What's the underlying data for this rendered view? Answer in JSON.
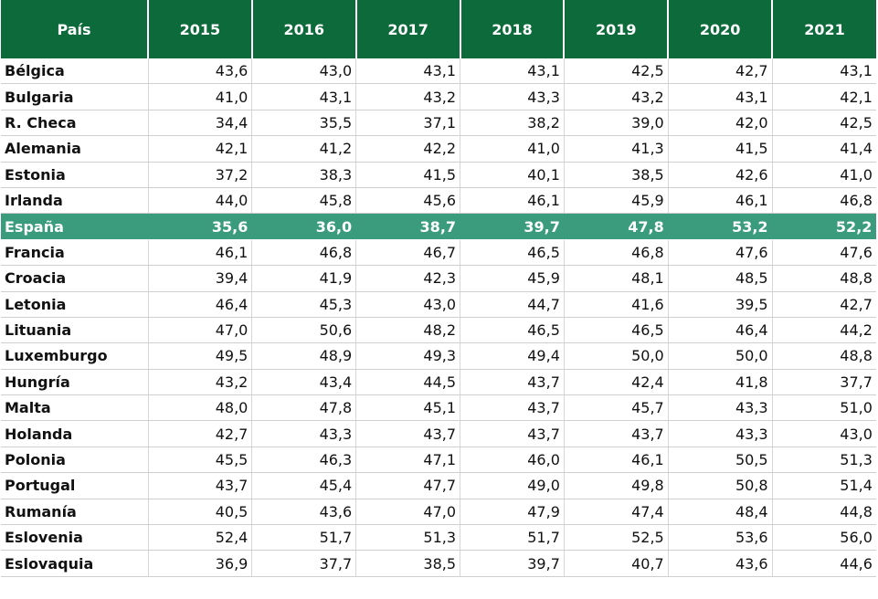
{
  "table": {
    "headers": [
      "País",
      "2015",
      "2016",
      "2017",
      "2018",
      "2019",
      "2020",
      "2021"
    ],
    "highlight_color": "#3a9b7d",
    "header_color": "#0c6a3b",
    "rows": [
      {
        "country": "Bélgica",
        "values": [
          "43,6",
          "43,0",
          "43,1",
          "43,1",
          "42,5",
          "42,7",
          "43,1"
        ]
      },
      {
        "country": "Bulgaria",
        "values": [
          "41,0",
          "43,1",
          "43,2",
          "43,3",
          "43,2",
          "43,1",
          "42,1"
        ]
      },
      {
        "country": "R. Checa",
        "values": [
          "34,4",
          "35,5",
          "37,1",
          "38,2",
          "39,0",
          "42,0",
          "42,5"
        ]
      },
      {
        "country": "Alemania",
        "values": [
          "42,1",
          "41,2",
          "42,2",
          "41,0",
          "41,3",
          "41,5",
          "41,4"
        ]
      },
      {
        "country": "Estonia",
        "values": [
          "37,2",
          "38,3",
          "41,5",
          "40,1",
          "38,5",
          "42,6",
          "41,0"
        ]
      },
      {
        "country": "Irlanda",
        "values": [
          "44,0",
          "45,8",
          "45,6",
          "46,1",
          "45,9",
          "46,1",
          "46,8"
        ]
      },
      {
        "country": "España",
        "highlight": true,
        "values": [
          "35,6",
          "36,0",
          "38,7",
          "39,7",
          "47,8",
          "53,2",
          "52,2"
        ]
      },
      {
        "country": "Francia",
        "values": [
          "46,1",
          "46,8",
          "46,7",
          "46,5",
          "46,8",
          "47,6",
          "47,6"
        ]
      },
      {
        "country": "Croacia",
        "values": [
          "39,4",
          "41,9",
          "42,3",
          "45,9",
          "48,1",
          "48,5",
          "48,8"
        ]
      },
      {
        "country": "Letonia",
        "values": [
          "46,4",
          "45,3",
          "43,0",
          "44,7",
          "41,6",
          "39,5",
          "42,7"
        ]
      },
      {
        "country": "Lituania",
        "values": [
          "47,0",
          "50,6",
          "48,2",
          "46,5",
          "46,5",
          "46,4",
          "44,2"
        ]
      },
      {
        "country": "Luxemburgo",
        "values": [
          "49,5",
          "48,9",
          "49,3",
          "49,4",
          "50,0",
          "50,0",
          "48,8"
        ]
      },
      {
        "country": "Hungría",
        "values": [
          "43,2",
          "43,4",
          "44,5",
          "43,7",
          "42,4",
          "41,8",
          "37,7"
        ]
      },
      {
        "country": "Malta",
        "values": [
          "48,0",
          "47,8",
          "45,1",
          "43,7",
          "45,7",
          "43,3",
          "51,0"
        ]
      },
      {
        "country": "Holanda",
        "values": [
          "42,7",
          "43,3",
          "43,7",
          "43,7",
          "43,7",
          "43,3",
          "43,0"
        ]
      },
      {
        "country": "Polonia",
        "values": [
          "45,5",
          "46,3",
          "47,1",
          "46,0",
          "46,1",
          "50,5",
          "51,3"
        ]
      },
      {
        "country": "Portugal",
        "values": [
          "43,7",
          "45,4",
          "47,7",
          "49,0",
          "49,8",
          "50,8",
          "51,4"
        ]
      },
      {
        "country": "Rumanía",
        "values": [
          "40,5",
          "43,6",
          "47,0",
          "47,9",
          "47,4",
          "48,4",
          "44,8"
        ]
      },
      {
        "country": "Eslovenia",
        "values": [
          "52,4",
          "51,7",
          "51,3",
          "51,7",
          "52,5",
          "53,6",
          "56,0"
        ]
      },
      {
        "country": "Eslovaquia",
        "values": [
          "36,9",
          "37,7",
          "38,5",
          "39,7",
          "40,7",
          "43,6",
          "44,6"
        ]
      }
    ]
  }
}
